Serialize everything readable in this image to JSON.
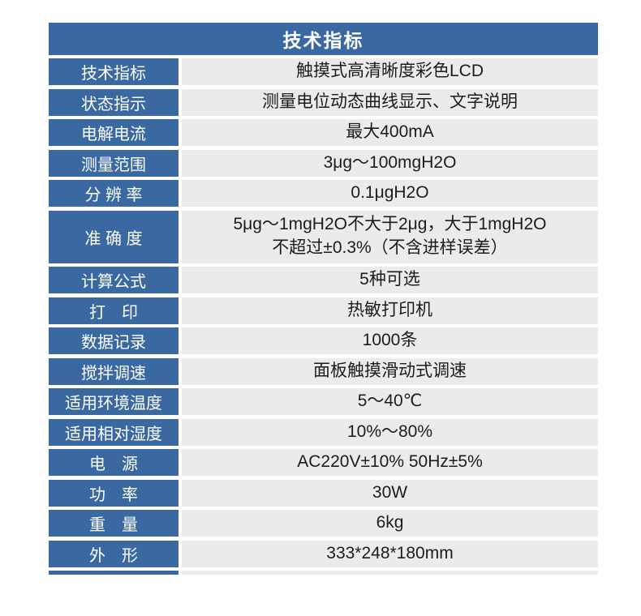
{
  "table": {
    "title": "技术指标",
    "colors": {
      "header_bg": "#3a68a0",
      "label_bg": "#3a68a0",
      "value_bg": "#ebebeb",
      "label_text": "#ffffff",
      "value_text": "#1c1c1c"
    },
    "rows": [
      {
        "label": "技术指标",
        "value": "触摸式高清晰度彩色LCD"
      },
      {
        "label": "状态指示",
        "value": "测量电位动态曲线显示、文字说明"
      },
      {
        "label": "电解电流",
        "value": "最大400mA"
      },
      {
        "label": "测量范围",
        "value": "3μg～100mgH2O"
      },
      {
        "label": "分 辨 率",
        "value": "0.1μgH2O"
      },
      {
        "label": "准 确 度",
        "value": "5μg～1mgH2O不大于2μg，大于1mgH2O\n不超过±0.3%（不含进样误差）"
      },
      {
        "label": "计算公式",
        "value": "5种可选"
      },
      {
        "label": "打　印",
        "value": "热敏打印机"
      },
      {
        "label": "数据记录",
        "value": "1000条"
      },
      {
        "label": "搅拌调速",
        "value": "面板触摸滑动式调速"
      },
      {
        "label": "适用环境温度",
        "value": "5～40℃"
      },
      {
        "label": "适用相对湿度",
        "value": "10%～80%"
      },
      {
        "label": "电　源",
        "value": "AC220V±10% 50Hz±5%"
      },
      {
        "label": "功　率",
        "value": "30W"
      },
      {
        "label": "重　量",
        "value": "6kg"
      },
      {
        "label": "外　形",
        "value": "333*248*180mm"
      }
    ]
  }
}
